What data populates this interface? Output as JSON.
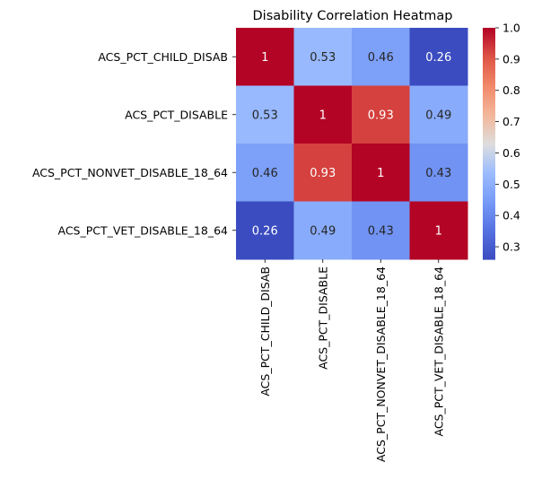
{
  "chart_data": {
    "type": "heatmap",
    "title": "Disability Correlation Heatmap",
    "xlabel": "",
    "ylabel": "",
    "rows": [
      "ACS_PCT_CHILD_DISAB",
      "ACS_PCT_DISABLE",
      "ACS_PCT_NONVET_DISABLE_18_64",
      "ACS_PCT_VET_DISABLE_18_64"
    ],
    "columns": [
      "ACS_PCT_CHILD_DISAB",
      "ACS_PCT_DISABLE",
      "ACS_PCT_NONVET_DISABLE_18_64",
      "ACS_PCT_VET_DISABLE_18_64"
    ],
    "values": [
      [
        1,
        0.53,
        0.46,
        0.26
      ],
      [
        0.53,
        1,
        0.93,
        0.49
      ],
      [
        0.46,
        0.93,
        1,
        0.43
      ],
      [
        0.26,
        0.49,
        0.43,
        1
      ]
    ],
    "annotations": [
      [
        "1",
        "0.53",
        "0.46",
        "0.26"
      ],
      [
        "0.53",
        "1",
        "0.93",
        "0.49"
      ],
      [
        "0.46",
        "0.93",
        "1",
        "0.43"
      ],
      [
        "0.26",
        "0.49",
        "0.43",
        "1"
      ]
    ],
    "colormap": "coolwarm",
    "vmin": 0.26,
    "vmax": 1.0,
    "colorbar": {
      "ticks": [
        0.3,
        0.4,
        0.5,
        0.6,
        0.7,
        0.8,
        0.9,
        1.0
      ],
      "tick_labels": [
        "0.3",
        "0.4",
        "0.5",
        "0.6",
        "0.7",
        "0.8",
        "0.9",
        "1.0"
      ]
    },
    "colors": {
      "low": "#3b4cc0",
      "mid": "#dddddd",
      "high": "#b40426"
    }
  }
}
